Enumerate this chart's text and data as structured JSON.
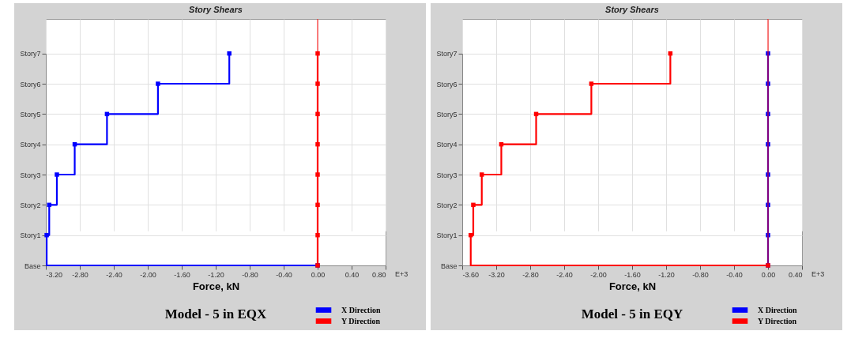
{
  "chart_data": [
    {
      "type": "step",
      "orientation": "horizontal",
      "title": "Story Shears",
      "xlabel": "Force, kN",
      "annotations": [
        "Model - 5 in EQX",
        "E+3"
      ],
      "categories": [
        "Story7",
        "Story6",
        "Story5",
        "Story4",
        "Story3",
        "Story2",
        "Story1",
        "Base"
      ],
      "series": [
        {
          "name": "X Direction",
          "color": "#0000ff",
          "values": [
            -1.04,
            -1.88,
            -2.48,
            -2.86,
            -3.07,
            -3.16,
            -3.19,
            0
          ]
        },
        {
          "name": "Y Direction",
          "color": "#ff0000",
          "values": [
            0,
            0,
            0,
            0,
            0,
            0,
            0,
            0
          ]
        }
      ],
      "xlim": [
        -3.2,
        0.8
      ],
      "xticks": [
        {
          "value": -3.2,
          "label": "-3.20"
        },
        {
          "value": -2.8,
          "label": "-2.80"
        },
        {
          "value": -2.4,
          "label": "-2.40"
        },
        {
          "value": -2,
          "label": "-2.00"
        },
        {
          "value": -1.6,
          "label": "-1.60"
        },
        {
          "value": -1.2,
          "label": "-1.20"
        },
        {
          "value": -0.8,
          "label": "-0.80"
        },
        {
          "value": -0.4,
          "label": "-0.40"
        },
        {
          "value": 0,
          "label": "0.00"
        },
        {
          "value": 0.4,
          "label": "0.40"
        },
        {
          "value": 0.8,
          "label": "0.80"
        }
      ],
      "ref_lines": [
        {
          "axis": "x",
          "value": 0,
          "color": "#ff0000"
        }
      ],
      "grid": true,
      "legend": "bottom right",
      "marker": "square"
    },
    {
      "type": "step",
      "orientation": "horizontal",
      "title": "Story Shears",
      "xlabel": "Force, kN",
      "annotations": [
        "Model - 5 in EQY",
        "E+3"
      ],
      "categories": [
        "Story7",
        "Story6",
        "Story5",
        "Story4",
        "Story3",
        "Story2",
        "Story1",
        "Base"
      ],
      "series": [
        {
          "name": "X Direction",
          "color": "#0000ff",
          "values": [
            0,
            0,
            0,
            0,
            0,
            0,
            0,
            0
          ]
        },
        {
          "name": "Y Direction",
          "color": "#ff0000",
          "values": [
            -1.15,
            -2.08,
            -2.73,
            -3.14,
            -3.37,
            -3.47,
            -3.5,
            0
          ]
        }
      ],
      "xlim": [
        -3.6,
        0.4
      ],
      "xticks": [
        {
          "value": -3.6,
          "label": "-3.60"
        },
        {
          "value": -3.2,
          "label": "-3.20"
        },
        {
          "value": -2.8,
          "label": "-2.80"
        },
        {
          "value": -2.4,
          "label": "-2.40"
        },
        {
          "value": -2,
          "label": "-2.00"
        },
        {
          "value": -1.6,
          "label": "-1.60"
        },
        {
          "value": -1.2,
          "label": "-1.20"
        },
        {
          "value": -0.8,
          "label": "-0.80"
        },
        {
          "value": -0.4,
          "label": "-0.40"
        },
        {
          "value": 0,
          "label": "0.00"
        },
        {
          "value": 0.4,
          "label": "0.40"
        }
      ],
      "ref_lines": [
        {
          "axis": "x",
          "value": 0,
          "color": "#ff0000"
        }
      ],
      "grid": true,
      "legend": "bottom right",
      "marker": "square"
    }
  ]
}
